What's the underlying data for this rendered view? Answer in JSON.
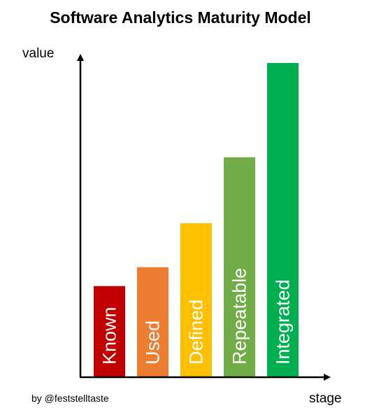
{
  "title": "Software Analytics Maturity Model",
  "credit": "by @feststelltaste",
  "chart_data": {
    "type": "bar",
    "title": "Software Analytics Maturity Model",
    "xlabel": "stage",
    "ylabel": "value",
    "categories": [
      "Known",
      "Used",
      "Defined",
      "Repeatable",
      "Integrated"
    ],
    "values": [
      29,
      35,
      49,
      70,
      100
    ],
    "ylim": [
      0,
      100
    ],
    "y_ticks": "none",
    "grid": false,
    "legend": "none",
    "bar_label_orientation": "vertical-rotated",
    "colors": [
      "#c00000",
      "#ed7d31",
      "#ffc000",
      "#70ad47",
      "#00b050"
    ]
  }
}
